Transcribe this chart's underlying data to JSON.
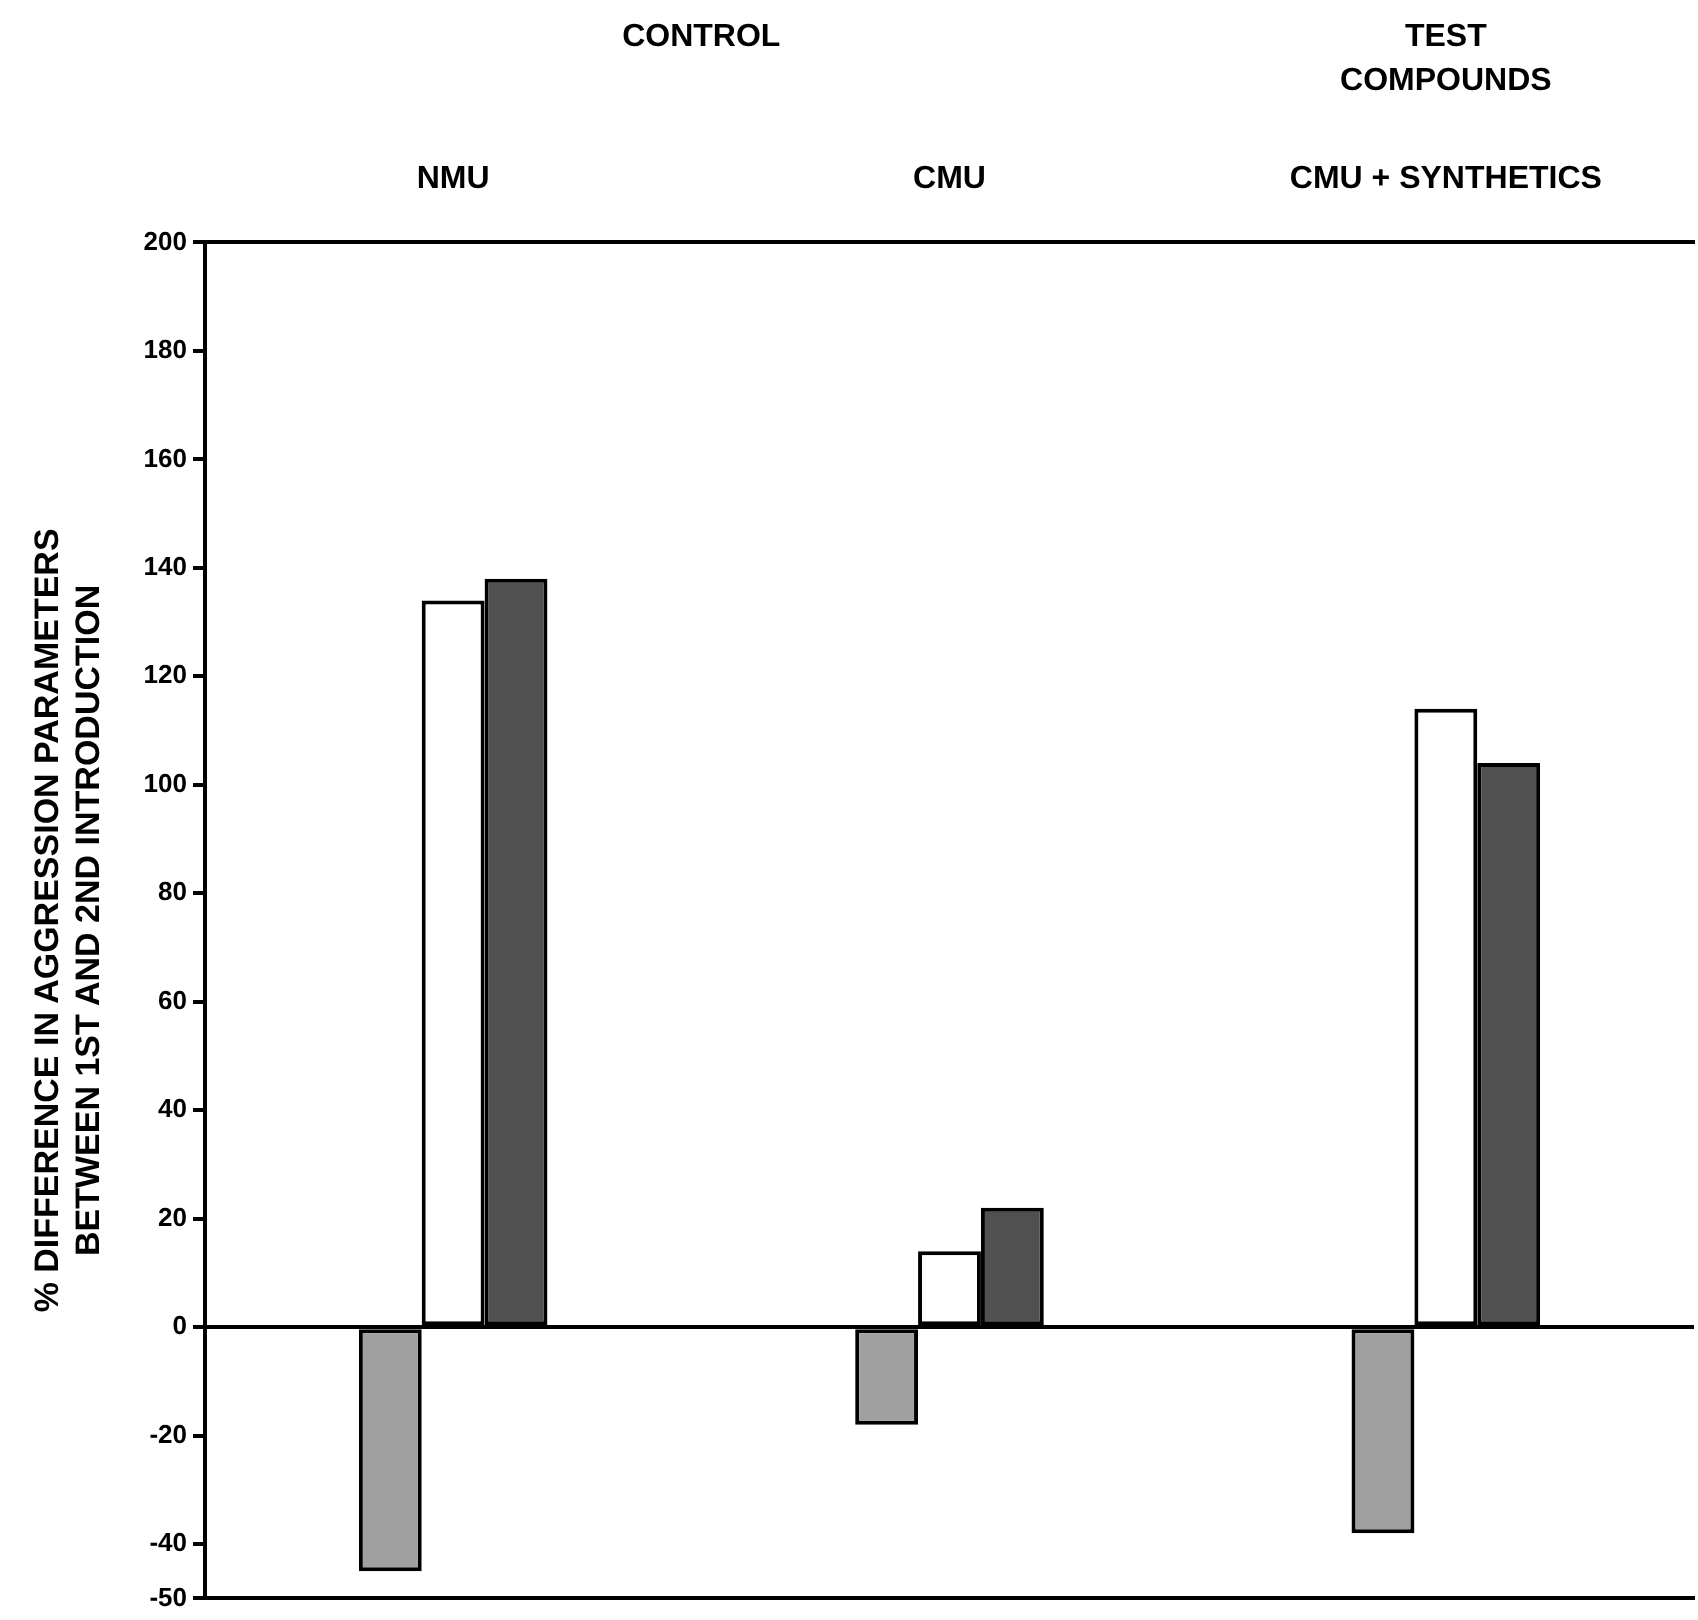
{
  "chart_data": {
    "type": "bar",
    "ylabel": "% DIFFERENCE IN AGGRESSION PARAMETERS BETWEEN 1ST AND 2ND INTRODUCTION",
    "categories": [
      "NMU",
      "CMU",
      "CMU + SYNTHETICS"
    ],
    "series": [
      {
        "color": "#a0a0a0",
        "values": [
          -45,
          -18,
          -38
        ]
      },
      {
        "color": "#ffffff",
        "values": [
          134,
          14,
          114
        ]
      },
      {
        "color": "#505050",
        "values": [
          138,
          22,
          104
        ]
      }
    ],
    "ylim": [
      -50,
      200
    ],
    "yticks": [
      -50,
      -40,
      -20,
      0,
      20,
      40,
      60,
      80,
      100,
      120,
      140,
      160,
      180,
      200
    ],
    "legend": false,
    "annotations": [
      "CONTROL",
      "TEST COMPOUNDS"
    ]
  }
}
